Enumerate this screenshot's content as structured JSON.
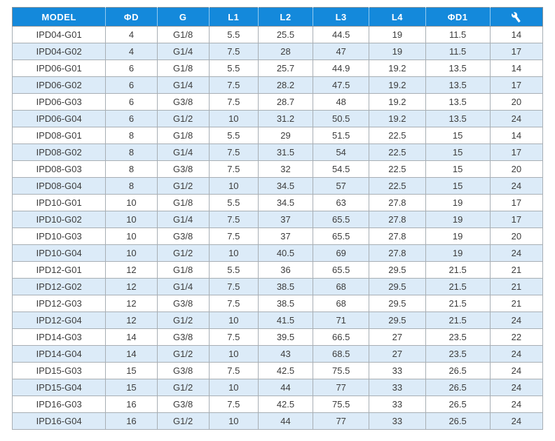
{
  "table": {
    "columns": [
      {
        "key": "model",
        "label": "MODEL"
      },
      {
        "key": "phi-d",
        "label": "ΦD"
      },
      {
        "key": "g",
        "label": "G"
      },
      {
        "key": "l1",
        "label": "L1"
      },
      {
        "key": "l2",
        "label": "L2"
      },
      {
        "key": "l3",
        "label": "L3"
      },
      {
        "key": "l4",
        "label": "L4"
      },
      {
        "key": "phi-d1",
        "label": "ΦD1"
      },
      {
        "key": "wrench",
        "label": "",
        "icon": "wrench-icon"
      }
    ],
    "rows": [
      [
        "IPD04-G01",
        "4",
        "G1/8",
        "5.5",
        "25.5",
        "44.5",
        "19",
        "11.5",
        "14"
      ],
      [
        "IPD04-G02",
        "4",
        "G1/4",
        "7.5",
        "28",
        "47",
        "19",
        "11.5",
        "17"
      ],
      [
        "IPD06-G01",
        "6",
        "G1/8",
        "5.5",
        "25.7",
        "44.9",
        "19.2",
        "13.5",
        "14"
      ],
      [
        "IPD06-G02",
        "6",
        "G1/4",
        "7.5",
        "28.2",
        "47.5",
        "19.2",
        "13.5",
        "17"
      ],
      [
        "IPD06-G03",
        "6",
        "G3/8",
        "7.5",
        "28.7",
        "48",
        "19.2",
        "13.5",
        "20"
      ],
      [
        "IPD06-G04",
        "6",
        "G1/2",
        "10",
        "31.2",
        "50.5",
        "19.2",
        "13.5",
        "24"
      ],
      [
        "IPD08-G01",
        "8",
        "G1/8",
        "5.5",
        "29",
        "51.5",
        "22.5",
        "15",
        "14"
      ],
      [
        "IPD08-G02",
        "8",
        "G1/4",
        "7.5",
        "31.5",
        "54",
        "22.5",
        "15",
        "17"
      ],
      [
        "IPD08-G03",
        "8",
        "G3/8",
        "7.5",
        "32",
        "54.5",
        "22.5",
        "15",
        "20"
      ],
      [
        "IPD08-G04",
        "8",
        "G1/2",
        "10",
        "34.5",
        "57",
        "22.5",
        "15",
        "24"
      ],
      [
        "IPD10-G01",
        "10",
        "G1/8",
        "5.5",
        "34.5",
        "63",
        "27.8",
        "19",
        "17"
      ],
      [
        "IPD10-G02",
        "10",
        "G1/4",
        "7.5",
        "37",
        "65.5",
        "27.8",
        "19",
        "17"
      ],
      [
        "IPD10-G03",
        "10",
        "G3/8",
        "7.5",
        "37",
        "65.5",
        "27.8",
        "19",
        "20"
      ],
      [
        "IPD10-G04",
        "10",
        "G1/2",
        "10",
        "40.5",
        "69",
        "27.8",
        "19",
        "24"
      ],
      [
        "IPD12-G01",
        "12",
        "G1/8",
        "5.5",
        "36",
        "65.5",
        "29.5",
        "21.5",
        "21"
      ],
      [
        "IPD12-G02",
        "12",
        "G1/4",
        "7.5",
        "38.5",
        "68",
        "29.5",
        "21.5",
        "21"
      ],
      [
        "IPD12-G03",
        "12",
        "G3/8",
        "7.5",
        "38.5",
        "68",
        "29.5",
        "21.5",
        "21"
      ],
      [
        "IPD12-G04",
        "12",
        "G1/2",
        "10",
        "41.5",
        "71",
        "29.5",
        "21.5",
        "24"
      ],
      [
        "IPD14-G03",
        "14",
        "G3/8",
        "7.5",
        "39.5",
        "66.5",
        "27",
        "23.5",
        "22"
      ],
      [
        "IPD14-G04",
        "14",
        "G1/2",
        "10",
        "43",
        "68.5",
        "27",
        "23.5",
        "24"
      ],
      [
        "IPD15-G03",
        "15",
        "G3/8",
        "7.5",
        "42.5",
        "75.5",
        "33",
        "26.5",
        "24"
      ],
      [
        "IPD15-G04",
        "15",
        "G1/2",
        "10",
        "44",
        "77",
        "33",
        "26.5",
        "24"
      ],
      [
        "IPD16-G03",
        "16",
        "G3/8",
        "7.5",
        "42.5",
        "75.5",
        "33",
        "26.5",
        "24"
      ],
      [
        "IPD16-G04",
        "16",
        "G1/2",
        "10",
        "44",
        "77",
        "33",
        "26.5",
        "24"
      ]
    ]
  },
  "colors": {
    "header_bg": "#1489DB",
    "header_text": "#FFFFFF",
    "alt_row_bg": "#DCEBF8",
    "row_bg": "#FFFFFF",
    "grid_line": "#A7AEB4",
    "outer_border": "#8A9298",
    "cell_text": "#3C3C3C"
  }
}
